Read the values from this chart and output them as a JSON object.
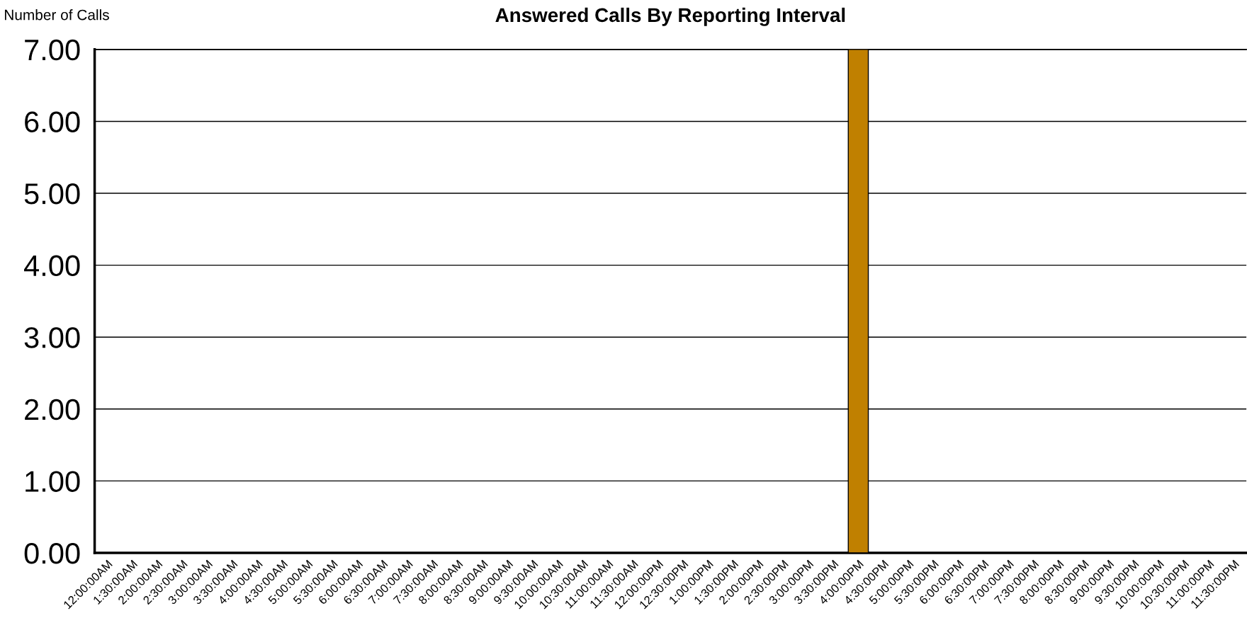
{
  "chart_data": {
    "type": "bar",
    "title": "Answered Calls By Reporting Interval",
    "ylabel": "Number of Calls",
    "categories": [
      "12:00:00AM",
      "1:30:00AM",
      "2:00:00AM",
      "2:30:00AM",
      "3:00:00AM",
      "3:30:00AM",
      "4:00:00AM",
      "4:30:00AM",
      "5:00:00AM",
      "5:30:00AM",
      "6:00:00AM",
      "6:30:00AM",
      "7:00:00AM",
      "7:30:00AM",
      "8:00:00AM",
      "8:30:00AM",
      "9:00:00AM",
      "9:30:00AM",
      "10:00:00AM",
      "10:30:00AM",
      "11:00:00AM",
      "11:30:00AM",
      "12:00:00PM",
      "12:30:00PM",
      "1:00:00PM",
      "1:30:00PM",
      "2:00:00PM",
      "2:30:00PM",
      "3:00:00PM",
      "3:30:00PM",
      "4:00:00PM",
      "4:30:00PM",
      "5:00:00PM",
      "5:30:00PM",
      "6:00:00PM",
      "6:30:00PM",
      "7:00:00PM",
      "7:30:00PM",
      "8:00:00PM",
      "8:30:00PM",
      "9:00:00PM",
      "9:30:00PM",
      "10:00:00PM",
      "10:30:00PM",
      "11:00:00PM",
      "11:30:00PM"
    ],
    "values": [
      0,
      0,
      0,
      0,
      0,
      0,
      0,
      0,
      0,
      0,
      0,
      0,
      0,
      0,
      0,
      0,
      0,
      0,
      0,
      0,
      0,
      0,
      0,
      0,
      0,
      0,
      0,
      0,
      0,
      0,
      7,
      0,
      0,
      0,
      0,
      0,
      0,
      0,
      0,
      0,
      0,
      0,
      0,
      0,
      0,
      0
    ],
    "color": "#c08000",
    "ylim": [
      0,
      7
    ],
    "yticks": [
      {
        "value": 0,
        "label": "0.00"
      },
      {
        "value": 1,
        "label": "1.00"
      },
      {
        "value": 2,
        "label": "2.00"
      },
      {
        "value": 3,
        "label": "3.00"
      },
      {
        "value": 4,
        "label": "4.00"
      },
      {
        "value": 5,
        "label": "5.00"
      },
      {
        "value": 6,
        "label": "6.00"
      },
      {
        "value": 7,
        "label": "7.00"
      }
    ],
    "grid": "y",
    "legend": false
  }
}
